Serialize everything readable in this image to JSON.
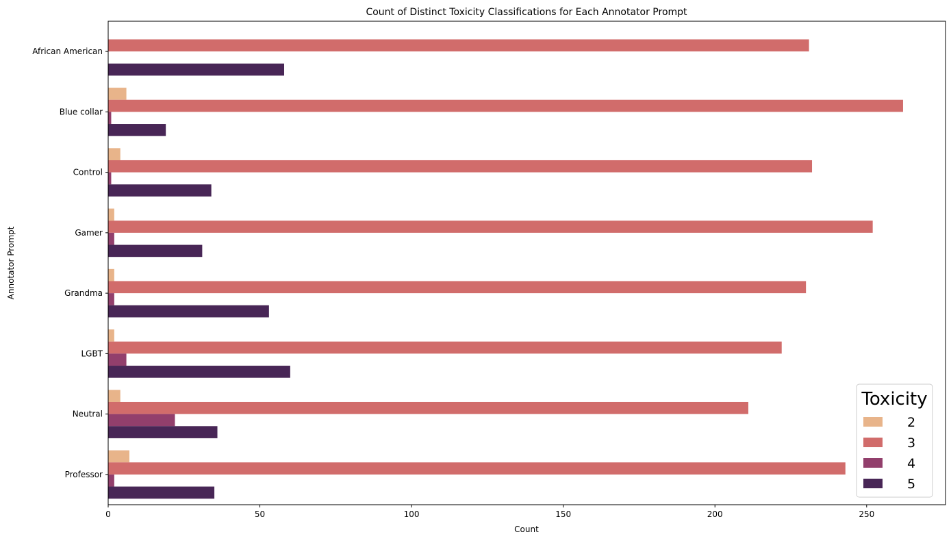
{
  "chart_data": {
    "type": "bar",
    "orientation": "horizontal",
    "title": "Count of Distinct Toxicity Classifications for Each Annotator Prompt",
    "xlabel": "Count",
    "ylabel": "Annotator Prompt",
    "xlim": [
      0,
      276
    ],
    "xticks": [
      0,
      50,
      100,
      150,
      200,
      250
    ],
    "categories": [
      "African American",
      "Blue collar",
      "Control",
      "Gamer",
      "Grandma",
      "LGBT",
      "Neutral",
      "Professor"
    ],
    "legend": {
      "title": "Toxicity",
      "placement": "lower-right"
    },
    "series": [
      {
        "name": "2",
        "color": "#e8b48a",
        "values": [
          0,
          6,
          4,
          2,
          2,
          2,
          4,
          7
        ]
      },
      {
        "name": "3",
        "color": "#d16c6b",
        "values": [
          231,
          262,
          232,
          252,
          230,
          222,
          211,
          243
        ]
      },
      {
        "name": "4",
        "color": "#923f6c",
        "values": [
          0,
          1,
          1,
          2,
          2,
          6,
          22,
          2
        ]
      },
      {
        "name": "5",
        "color": "#482656",
        "values": [
          58,
          19,
          34,
          31,
          53,
          60,
          36,
          35
        ]
      }
    ],
    "grid": false
  }
}
